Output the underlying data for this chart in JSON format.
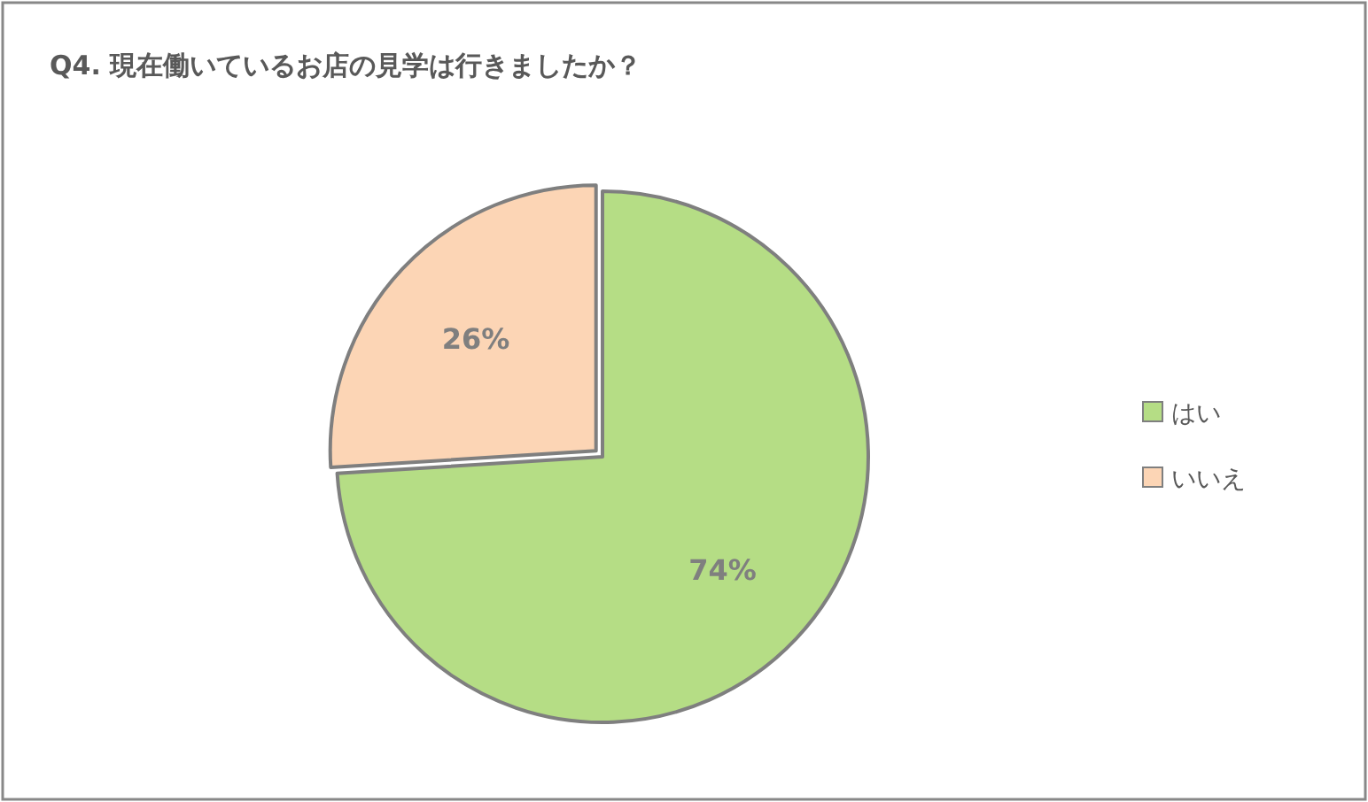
{
  "chart_data": {
    "type": "pie",
    "title": "Q4. 現在働いているお店の見学は行きましたか？",
    "categories": [
      "はい",
      "いいえ"
    ],
    "values": [
      74,
      26
    ],
    "colors": [
      "#b5dd85",
      "#fcd5b5"
    ],
    "value_labels": [
      "74%",
      "26%"
    ],
    "legend": "right"
  }
}
